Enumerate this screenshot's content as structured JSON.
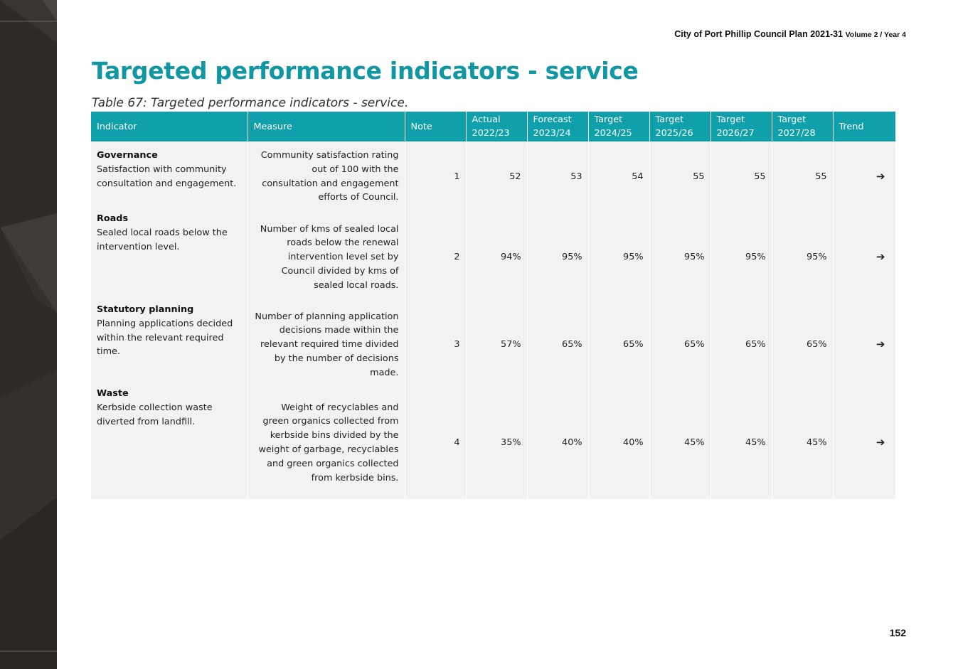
{
  "header": {
    "doc_title": "City of Port Phillip Council Plan 2021-31",
    "doc_volume": "Volume 2 / Year 4"
  },
  "page_title": "Targeted performance indicators - service",
  "table_caption": "Table 67: Targeted performance indicators - service.",
  "table": {
    "columns": [
      "Indicator",
      "Measure",
      "Note",
      "Actual 2022/23",
      "Forecast 2023/24",
      "Target 2024/25",
      "Target 2025/26",
      "Target 2026/27",
      "Target 2027/28",
      "Trend"
    ],
    "rows": [
      {
        "category": "Governance",
        "indicator": "Satisfaction with community consultation and engagement.",
        "measure": "Community satisfaction rating out of 100 with the consultation and engagement efforts of Council.",
        "note": "1",
        "actual_2022_23": "52",
        "forecast_2023_24": "53",
        "target_2024_25": "54",
        "target_2025_26": "55",
        "target_2026_27": "55",
        "target_2027_28": "55",
        "trend": "➔"
      },
      {
        "category": "Roads",
        "indicator": "Sealed local roads below the intervention level.",
        "measure": "Number of kms of sealed local roads below the renewal intervention level set by Council divided by kms of sealed local roads.",
        "note": "2",
        "actual_2022_23": "94%",
        "forecast_2023_24": "95%",
        "target_2024_25": "95%",
        "target_2025_26": "95%",
        "target_2026_27": "95%",
        "target_2027_28": "95%",
        "trend": "➔"
      },
      {
        "category": "Statutory planning",
        "indicator": "Planning applications decided within the relevant required time.",
        "measure": "Number of planning application decisions made within the relevant required time divided by the number of decisions made.",
        "note": "3",
        "actual_2022_23": "57%",
        "forecast_2023_24": "65%",
        "target_2024_25": "65%",
        "target_2025_26": "65%",
        "target_2026_27": "65%",
        "target_2027_28": "65%",
        "trend": "➔"
      },
      {
        "category": "Waste",
        "indicator": "Kerbside collection waste diverted from landfill.",
        "measure": "Weight of recyclables and green organics collected from kerbside bins divided by the weight of garbage, recyclables and green organics collected from kerbside bins.",
        "note": "4",
        "actual_2022_23": "35%",
        "forecast_2023_24": "40%",
        "target_2024_25": "40%",
        "target_2025_26": "45%",
        "target_2026_27": "45%",
        "target_2027_28": "45%",
        "trend": "➔"
      }
    ]
  },
  "page_number": "152",
  "colors": {
    "accent": "#0f97a3",
    "header_bg": "#0fa0ac",
    "row_bg": "#f2f2f2",
    "trend_arrow": "#e8731a",
    "sidebar": "#2f2a27"
  },
  "icons": {
    "trend": "arrow-right-icon"
  }
}
